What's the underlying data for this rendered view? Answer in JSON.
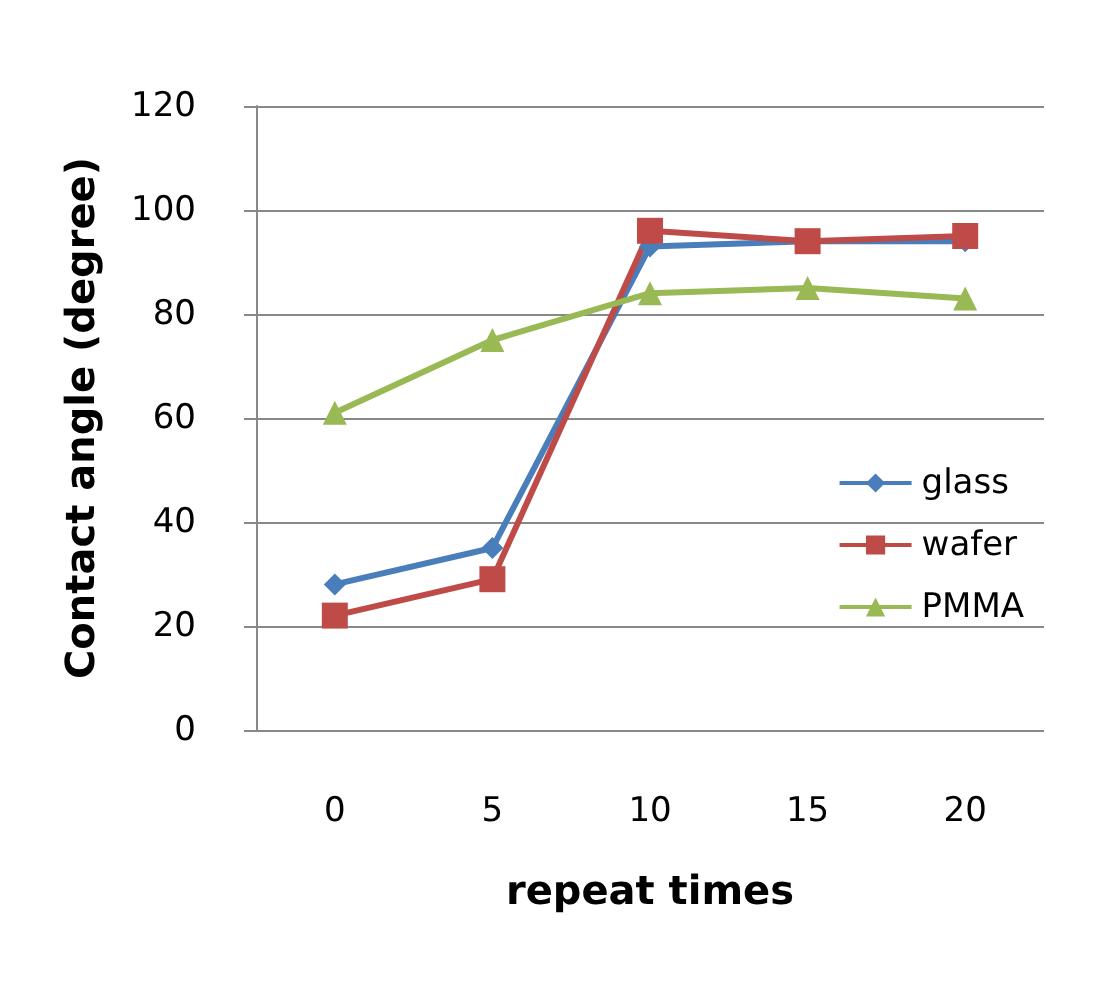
{
  "chart_data": {
    "type": "line",
    "xlabel": "repeat times",
    "ylabel": "Contact angle (degree)",
    "categories": [
      "0",
      "5",
      "10",
      "15",
      "20"
    ],
    "series": [
      {
        "name": "glass",
        "color": "#4a7ebb",
        "marker": "diamond",
        "values": [
          28,
          35,
          93,
          94,
          94
        ]
      },
      {
        "name": "wafer",
        "color": "#be4b48",
        "marker": "square",
        "values": [
          22,
          29,
          96,
          94,
          95
        ]
      },
      {
        "name": "PMMA",
        "color": "#98b954",
        "marker": "triangle",
        "values": [
          61,
          75,
          84,
          85,
          83
        ]
      }
    ],
    "ylim": [
      0,
      120
    ],
    "yticks": [
      0,
      20,
      40,
      60,
      80,
      100,
      120
    ],
    "grid": "y",
    "legend": "right"
  }
}
